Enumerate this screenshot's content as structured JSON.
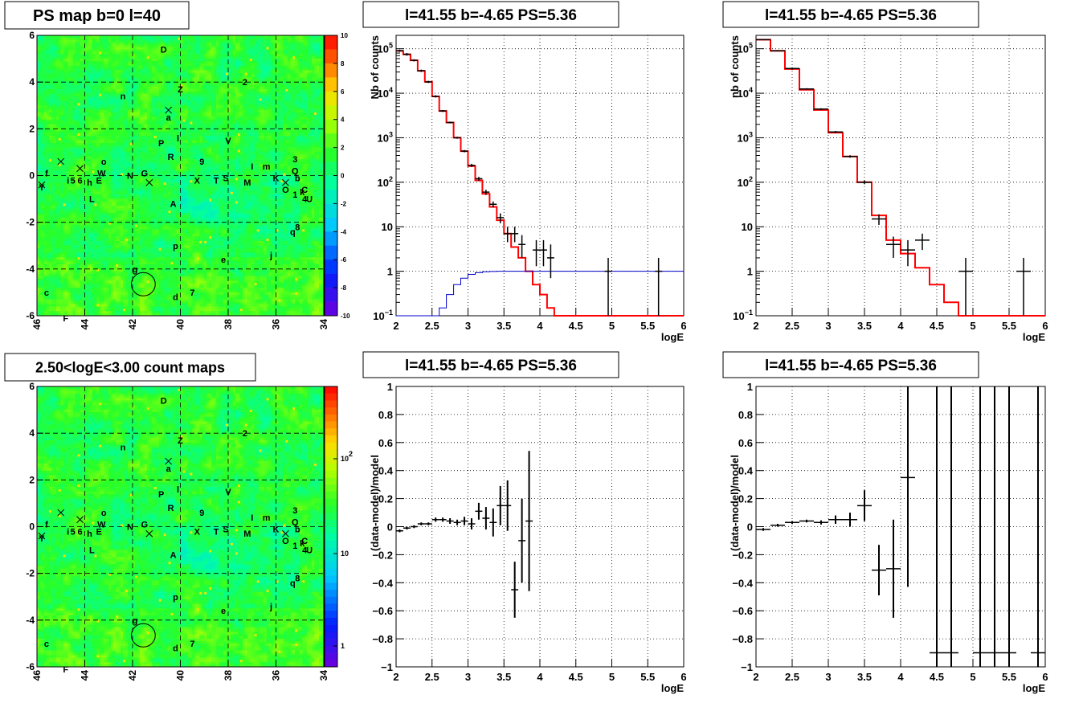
{
  "chart_data": [
    {
      "id": "ps_map",
      "type": "heatmap",
      "title": "PS map b=0 l=40",
      "x_ticks": [
        "46",
        "44",
        "42",
        "40",
        "38",
        "36",
        "34"
      ],
      "y_ticks": [
        "6",
        "4",
        "2",
        "0",
        "-2",
        "-4",
        "-6"
      ],
      "x_range": [
        46,
        34
      ],
      "y_range": [
        -6,
        6
      ],
      "colorbar_ticks": [
        "10",
        "8",
        "6",
        "4",
        "2",
        "0",
        "-2",
        "-4",
        "-6",
        "-8",
        "-10"
      ],
      "colorbar_range": [
        -10,
        10
      ],
      "grid": true,
      "circle": {
        "l": 41.55,
        "b": -4.65,
        "r": 0.5
      },
      "crosses": [
        [
          45.0,
          0.6
        ],
        [
          44.2,
          0.3
        ],
        [
          45.8,
          -0.4
        ],
        [
          40.5,
          2.8
        ],
        [
          41.3,
          -0.3
        ],
        [
          35.6,
          -0.3
        ]
      ],
      "labels": [
        {
          "t": "D",
          "l": 40.7,
          "b": 5.4
        },
        {
          "t": "2",
          "l": 37.3,
          "b": 4.0
        },
        {
          "t": "Z",
          "l": 40.0,
          "b": 3.7
        },
        {
          "t": "n",
          "l": 42.4,
          "b": 3.4
        },
        {
          "t": "a",
          "l": 40.5,
          "b": 2.5
        },
        {
          "t": "l",
          "l": 40.1,
          "b": 1.6
        },
        {
          "t": "P",
          "l": 40.8,
          "b": 1.4
        },
        {
          "t": "V",
          "l": 38.0,
          "b": 1.5
        },
        {
          "t": "3",
          "l": 35.2,
          "b": 0.7
        },
        {
          "t": "R",
          "l": 40.4,
          "b": 0.8
        },
        {
          "t": "9",
          "l": 39.1,
          "b": 0.6
        },
        {
          "t": "I",
          "l": 37.0,
          "b": 0.4
        },
        {
          "t": "m",
          "l": 36.4,
          "b": 0.4
        },
        {
          "t": "Q",
          "l": 35.2,
          "b": 0.2
        },
        {
          "t": "f",
          "l": 45.6,
          "b": 0.1
        },
        {
          "t": "W",
          "l": 43.3,
          "b": 0.1
        },
        {
          "t": "o",
          "l": 43.2,
          "b": 0.6
        },
        {
          "t": "N",
          "l": 42.1,
          "b": 0.0
        },
        {
          "t": "G",
          "l": 41.5,
          "b": 0.1
        },
        {
          "t": "X",
          "l": 39.3,
          "b": -0.2
        },
        {
          "t": "T",
          "l": 38.5,
          "b": -0.2
        },
        {
          "t": "S",
          "l": 38.1,
          "b": -0.1
        },
        {
          "t": "M",
          "l": 37.2,
          "b": -0.3
        },
        {
          "t": "K",
          "l": 36.0,
          "b": -0.1
        },
        {
          "t": "b",
          "l": 35.1,
          "b": -0.1
        },
        {
          "t": "Y",
          "l": 45.8,
          "b": -0.5
        },
        {
          "t": "5",
          "l": 44.5,
          "b": -0.2
        },
        {
          "t": "6",
          "l": 44.2,
          "b": -0.2
        },
        {
          "t": "h",
          "l": 43.8,
          "b": -0.3
        },
        {
          "t": "E",
          "l": 43.4,
          "b": -0.2
        },
        {
          "t": "i",
          "l": 44.7,
          "b": -0.2
        },
        {
          "t": "O",
          "l": 35.6,
          "b": -0.6
        },
        {
          "t": "1",
          "l": 35.2,
          "b": -0.8
        },
        {
          "t": "k",
          "l": 34.9,
          "b": -0.7
        },
        {
          "t": "C",
          "l": 34.8,
          "b": -0.6
        },
        {
          "t": "4",
          "l": 34.8,
          "b": -1.0
        },
        {
          "t": "U",
          "l": 34.6,
          "b": -1.0
        },
        {
          "t": "L",
          "l": 43.7,
          "b": -1.0
        },
        {
          "t": "A",
          "l": 40.3,
          "b": -1.2
        },
        {
          "t": "q",
          "l": 35.3,
          "b": -2.4
        },
        {
          "t": "8",
          "l": 35.1,
          "b": -2.2
        },
        {
          "t": "p",
          "l": 40.2,
          "b": -3.0
        },
        {
          "t": "e",
          "l": 38.2,
          "b": -3.6
        },
        {
          "t": "j",
          "l": 36.2,
          "b": -3.4
        },
        {
          "t": "g",
          "l": 41.9,
          "b": -4.0
        },
        {
          "t": "c",
          "l": 45.6,
          "b": -5.0
        },
        {
          "t": "7",
          "l": 39.5,
          "b": -5.0
        },
        {
          "t": "d",
          "l": 40.2,
          "b": -5.2
        },
        {
          "t": "F",
          "l": 44.8,
          "b": -6.1
        }
      ]
    },
    {
      "id": "spec1",
      "type": "line",
      "title": "l=41.55 b=-4.65 PS=5.36",
      "xlabel": "logE",
      "ylabel": "Nb of counts",
      "xlim": [
        2,
        6
      ],
      "ylim": [
        0.1,
        200000
      ],
      "y_scale": "log",
      "grid": true,
      "x_ticks": [
        "2",
        "2.5",
        "3",
        "3.5",
        "4",
        "4.5",
        "5",
        "5.5",
        "6"
      ],
      "y_ticks": [
        {
          "v": 0.1,
          "b": "10",
          "e": "−1"
        },
        {
          "v": 1,
          "b": "1",
          "e": ""
        },
        {
          "v": 10,
          "b": "10",
          "e": ""
        },
        {
          "v": 100,
          "b": "10",
          "e": "2"
        },
        {
          "v": 1000,
          "b": "10",
          "e": "3"
        },
        {
          "v": 10000,
          "b": "10",
          "e": "4"
        },
        {
          "v": 100000,
          "b": "10",
          "e": "5"
        }
      ],
      "bin_edges": [
        2.0,
        2.1,
        2.2,
        2.3,
        2.4,
        2.5,
        2.6,
        2.7,
        2.8,
        2.9,
        3.0,
        3.1,
        3.2,
        3.3,
        3.4,
        3.5,
        3.6,
        3.7,
        3.8,
        3.9,
        4.0,
        4.1,
        4.2,
        4.3,
        4.4,
        4.5,
        4.6,
        4.7,
        4.8,
        4.9,
        5.0,
        5.1,
        5.2,
        5.3,
        5.4,
        5.5,
        5.6,
        5.7,
        5.8,
        5.9,
        6.0
      ],
      "series": [
        {
          "role": "model",
          "color": "#ff0000",
          "values": [
            90000,
            75000,
            55000,
            32000,
            18000,
            8500,
            4000,
            2200,
            1000,
            500,
            230,
            110,
            55,
            28,
            14,
            7,
            3.5,
            2,
            1,
            0.5,
            0.3,
            0.15,
            0.1,
            0.1,
            0.1,
            0.1,
            0.1,
            0.1,
            0.1,
            0.1,
            0.1,
            0.1,
            0.1,
            0.1,
            0.1,
            0.1,
            0.1,
            0.1,
            0.1,
            0.1
          ]
        },
        {
          "role": "ps-model",
          "color": "#0000cc",
          "values": [
            0.1,
            0.1,
            0.1,
            0.1,
            0.1,
            0.1,
            0.15,
            0.3,
            0.5,
            0.7,
            0.85,
            0.93,
            0.97,
            0.99,
            1,
            1,
            1,
            1,
            1,
            1,
            1,
            1,
            1,
            1,
            1,
            1,
            1,
            1,
            1,
            1,
            1,
            1,
            1,
            1,
            1,
            1,
            1,
            1,
            1,
            1
          ]
        }
      ],
      "points": [
        {
          "x": 2.05,
          "y": 90000,
          "lo": 85000,
          "hi": 95000
        },
        {
          "x": 2.15,
          "y": 75000,
          "lo": 70000,
          "hi": 80000
        },
        {
          "x": 2.25,
          "y": 55000,
          "lo": 52000,
          "hi": 58000
        },
        {
          "x": 2.35,
          "y": 32000,
          "lo": 30000,
          "hi": 34000
        },
        {
          "x": 2.45,
          "y": 18000,
          "lo": 17000,
          "hi": 19000
        },
        {
          "x": 2.55,
          "y": 8500,
          "lo": 8000,
          "hi": 9000
        },
        {
          "x": 2.65,
          "y": 4000,
          "lo": 3800,
          "hi": 4200
        },
        {
          "x": 2.75,
          "y": 2200,
          "lo": 2100,
          "hi": 2300
        },
        {
          "x": 2.85,
          "y": 1000,
          "lo": 950,
          "hi": 1050
        },
        {
          "x": 2.95,
          "y": 500,
          "lo": 470,
          "hi": 530
        },
        {
          "x": 3.05,
          "y": 240,
          "lo": 220,
          "hi": 260
        },
        {
          "x": 3.15,
          "y": 120,
          "lo": 108,
          "hi": 132
        },
        {
          "x": 3.25,
          "y": 60,
          "lo": 52,
          "hi": 68
        },
        {
          "x": 3.35,
          "y": 32,
          "lo": 27,
          "hi": 37
        },
        {
          "x": 3.45,
          "y": 16,
          "lo": 12,
          "hi": 20
        },
        {
          "x": 3.55,
          "y": 7,
          "lo": 4.5,
          "hi": 10
        },
        {
          "x": 3.65,
          "y": 7,
          "lo": 4.5,
          "hi": 10
        },
        {
          "x": 3.75,
          "y": 4,
          "lo": 2,
          "hi": 6.5
        },
        {
          "x": 3.95,
          "y": 3,
          "lo": 1.3,
          "hi": 5
        },
        {
          "x": 4.05,
          "y": 3,
          "lo": 1.3,
          "hi": 5
        },
        {
          "x": 4.15,
          "y": 2,
          "lo": 0.7,
          "hi": 4
        },
        {
          "x": 4.95,
          "y": 1,
          "lo": 0.1,
          "hi": 2
        },
        {
          "x": 5.65,
          "y": 1,
          "lo": 0.1,
          "hi": 2
        }
      ]
    },
    {
      "id": "spec2",
      "type": "line",
      "title": "l=41.55 b=-4.65 PS=5.36",
      "xlabel": "logE",
      "ylabel": "nb of counts",
      "xlim": [
        2,
        6
      ],
      "ylim": [
        0.1,
        200000
      ],
      "y_scale": "log",
      "grid": true,
      "x_ticks": [
        "2",
        "2.5",
        "3",
        "3.5",
        "4",
        "4.5",
        "5",
        "5.5",
        "6"
      ],
      "y_ticks": [
        {
          "v": 0.1,
          "b": "10",
          "e": "−1"
        },
        {
          "v": 1,
          "b": "1",
          "e": ""
        },
        {
          "v": 10,
          "b": "10",
          "e": ""
        },
        {
          "v": 100,
          "b": "10",
          "e": "2"
        },
        {
          "v": 1000,
          "b": "10",
          "e": "3"
        },
        {
          "v": 10000,
          "b": "10",
          "e": "4"
        },
        {
          "v": 100000,
          "b": "10",
          "e": "5"
        }
      ],
      "bin_edges": [
        2.0,
        2.2,
        2.4,
        2.6,
        2.8,
        3.0,
        3.2,
        3.4,
        3.6,
        3.8,
        4.0,
        4.2,
        4.4,
        4.6,
        4.8,
        5.0,
        5.2,
        5.4,
        5.6,
        5.8,
        6.0
      ],
      "series": [
        {
          "role": "model",
          "color": "#ff0000",
          "values": [
            160000,
            90000,
            35000,
            12000,
            4200,
            1300,
            380,
            100,
            18,
            5,
            2.5,
            1.2,
            0.5,
            0.2,
            0.1,
            0.1,
            0.1,
            0.1,
            0.1,
            0.1
          ]
        }
      ],
      "points": [
        {
          "x": 2.1,
          "y": 160000,
          "lo": 155000,
          "hi": 165000
        },
        {
          "x": 2.3,
          "y": 90000,
          "lo": 87000,
          "hi": 93000
        },
        {
          "x": 2.5,
          "y": 36000,
          "lo": 34000,
          "hi": 38000
        },
        {
          "x": 2.7,
          "y": 12500,
          "lo": 12000,
          "hi": 13000
        },
        {
          "x": 2.9,
          "y": 4400,
          "lo": 4200,
          "hi": 4600
        },
        {
          "x": 3.1,
          "y": 1350,
          "lo": 1280,
          "hi": 1420
        },
        {
          "x": 3.3,
          "y": 380,
          "lo": 355,
          "hi": 405
        },
        {
          "x": 3.5,
          "y": 100,
          "lo": 90,
          "hi": 110
        },
        {
          "x": 3.7,
          "y": 15,
          "lo": 11,
          "hi": 19
        },
        {
          "x": 3.9,
          "y": 4,
          "lo": 2,
          "hi": 6
        },
        {
          "x": 4.1,
          "y": 3,
          "lo": 1.3,
          "hi": 5
        },
        {
          "x": 4.3,
          "y": 5,
          "lo": 3,
          "hi": 7
        },
        {
          "x": 4.9,
          "y": 1,
          "lo": 0.1,
          "hi": 2
        },
        {
          "x": 5.7,
          "y": 1,
          "lo": 0.1,
          "hi": 2
        }
      ]
    },
    {
      "id": "count_map",
      "type": "heatmap",
      "title": "2.50<logE<3.00 count maps",
      "x_ticks": [
        "46",
        "44",
        "42",
        "40",
        "38",
        "36",
        "34"
      ],
      "y_ticks": [
        "6",
        "4",
        "2",
        "0",
        "-2",
        "-4",
        "-6"
      ],
      "x_range": [
        46,
        34
      ],
      "y_range": [
        -6,
        6
      ],
      "colorbar_ticks": [
        {
          "b": "10",
          "e": "2"
        },
        {
          "b": "10",
          "e": ""
        },
        {
          "b": "1",
          "e": ""
        }
      ],
      "grid": true
    },
    {
      "id": "resid1",
      "type": "scatter",
      "title": "l=41.55 b=-4.65 PS=5.36",
      "xlabel": "logE",
      "ylabel": "(data-model)/model",
      "xlim": [
        2,
        6
      ],
      "ylim": [
        -1,
        1
      ],
      "grid": true,
      "x_ticks": [
        "2",
        "2.5",
        "3",
        "3.5",
        "4",
        "4.5",
        "5",
        "5.5",
        "6"
      ],
      "y_ticks": [
        "1",
        "0.8",
        "0.6",
        "0.4",
        "0.2",
        "0",
        "−0.2",
        "−0.4",
        "−0.6",
        "−0.8",
        "−1"
      ],
      "half_width": 0.05,
      "points": [
        {
          "x": 2.05,
          "y": -0.03,
          "e": 0.01
        },
        {
          "x": 2.15,
          "y": -0.01,
          "e": 0.01
        },
        {
          "x": 2.25,
          "y": 0.0,
          "e": 0.01
        },
        {
          "x": 2.35,
          "y": 0.02,
          "e": 0.01
        },
        {
          "x": 2.45,
          "y": 0.02,
          "e": 0.01
        },
        {
          "x": 2.55,
          "y": 0.05,
          "e": 0.015
        },
        {
          "x": 2.65,
          "y": 0.05,
          "e": 0.015
        },
        {
          "x": 2.75,
          "y": 0.04,
          "e": 0.02
        },
        {
          "x": 2.85,
          "y": 0.03,
          "e": 0.02
        },
        {
          "x": 2.95,
          "y": 0.04,
          "e": 0.03
        },
        {
          "x": 3.05,
          "y": 0.02,
          "e": 0.04
        },
        {
          "x": 3.15,
          "y": 0.11,
          "e": 0.06
        },
        {
          "x": 3.25,
          "y": 0.06,
          "e": 0.08
        },
        {
          "x": 3.35,
          "y": 0.03,
          "e": 0.1
        },
        {
          "x": 3.45,
          "y": 0.15,
          "e": 0.14
        },
        {
          "x": 3.55,
          "y": 0.15,
          "e": 0.18
        },
        {
          "x": 3.65,
          "y": -0.45,
          "e": 0.2
        },
        {
          "x": 3.75,
          "y": -0.1,
          "e": 0.3
        },
        {
          "x": 3.85,
          "y": 0.04,
          "e": 0.5
        }
      ]
    },
    {
      "id": "resid2",
      "type": "scatter",
      "title": "l=41.55 b=-4.65 PS=5.36",
      "xlabel": "logE",
      "ylabel": "(data-model)/model",
      "xlim": [
        2,
        6
      ],
      "ylim": [
        -1,
        1
      ],
      "grid": true,
      "x_ticks": [
        "2",
        "2.5",
        "3",
        "3.5",
        "4",
        "4.5",
        "5",
        "5.5",
        "6"
      ],
      "y_ticks": [
        "1",
        "0.8",
        "0.6",
        "0.4",
        "0.2",
        "0",
        "−0.2",
        "−0.4",
        "−0.6",
        "−0.8",
        "−1"
      ],
      "half_width": 0.1,
      "points": [
        {
          "x": 2.1,
          "y": -0.02,
          "e": 0.01
        },
        {
          "x": 2.3,
          "y": 0.01,
          "e": 0.01
        },
        {
          "x": 2.5,
          "y": 0.03,
          "e": 0.01
        },
        {
          "x": 2.7,
          "y": 0.04,
          "e": 0.01
        },
        {
          "x": 2.9,
          "y": 0.03,
          "e": 0.015
        },
        {
          "x": 3.1,
          "y": 0.05,
          "e": 0.03
        },
        {
          "x": 3.3,
          "y": 0.05,
          "e": 0.05
        },
        {
          "x": 3.5,
          "y": 0.15,
          "e": 0.11
        },
        {
          "x": 3.7,
          "y": -0.31,
          "e": 0.18
        },
        {
          "x": 3.9,
          "y": -0.3,
          "e": 0.35
        },
        {
          "x": 4.1,
          "y": 0.35,
          "e": 0.78
        },
        {
          "x": 4.5,
          "y": -0.9,
          "e": 3
        },
        {
          "x": 4.7,
          "y": -0.9,
          "e": 3
        },
        {
          "x": 5.1,
          "y": -0.9,
          "e": 3
        },
        {
          "x": 5.3,
          "y": -0.9,
          "e": 3
        },
        {
          "x": 5.5,
          "y": -0.9,
          "e": 3
        },
        {
          "x": 5.9,
          "y": -0.9,
          "e": 3
        }
      ]
    }
  ]
}
